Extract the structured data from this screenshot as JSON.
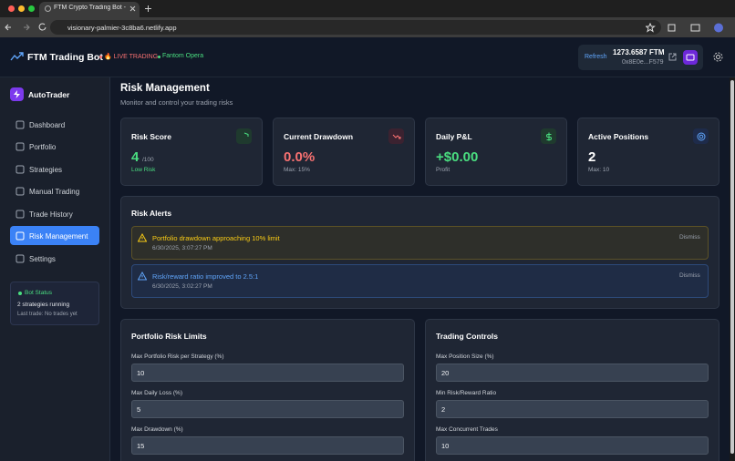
{
  "browser": {
    "tab_title": "FTM Crypto Trading Bot - Au",
    "url": "visionary-palmier-3c8ba6.netlify.app"
  },
  "header": {
    "brand": "FTM Trading Bot",
    "status": "🔥 LIVE TRADING",
    "network": "Fantom Opera",
    "refresh": "Refresh",
    "balance": "1273.6587 FTM",
    "address": "0x8E0e...F579"
  },
  "sidebar": {
    "app_name": "AutoTrader",
    "nav": [
      "Dashboard",
      "Portfolio",
      "Strategies",
      "Manual Trading",
      "Trade History",
      "Risk Management",
      "Settings"
    ],
    "bot_status": {
      "title": "Bot Status",
      "running": "2 strategies running",
      "last_trade": "Last trade: No trades yet"
    }
  },
  "page": {
    "title": "Risk Management",
    "subtitle": "Monitor and control your trading risks"
  },
  "cards": [
    {
      "title": "Risk Score",
      "value": "4",
      "unit": "/100",
      "note": "Low Risk"
    },
    {
      "title": "Current Drawdown",
      "value": "0.0%",
      "note": "Max: 15%"
    },
    {
      "title": "Daily P&L",
      "value": "+$0.00",
      "note": "Profit"
    },
    {
      "title": "Active Positions",
      "value": "2",
      "note": "Max: 10"
    }
  ],
  "alerts": {
    "title": "Risk Alerts",
    "items": [
      {
        "message": "Portfolio drawdown approaching 10% limit",
        "time": "6/30/2025, 3:07:27 PM",
        "action": "Dismiss"
      },
      {
        "message": "Risk/reward ratio improved to 2.5:1",
        "time": "6/30/2025, 3:02:27 PM",
        "action": "Dismiss"
      }
    ]
  },
  "panels": [
    {
      "title": "Portfolio Risk Limits",
      "fields": [
        {
          "label": "Max Portfolio Risk per Strategy (%)",
          "value": "10"
        },
        {
          "label": "Max Daily Loss (%)",
          "value": "5"
        },
        {
          "label": "Max Drawdown (%)",
          "value": "15"
        }
      ]
    },
    {
      "title": "Trading Controls",
      "fields": [
        {
          "label": "Max Position Size (%)",
          "value": "20"
        },
        {
          "label": "Min Risk/Reward Ratio",
          "value": "2"
        },
        {
          "label": "Max Concurrent Trades",
          "value": "10"
        }
      ]
    }
  ]
}
